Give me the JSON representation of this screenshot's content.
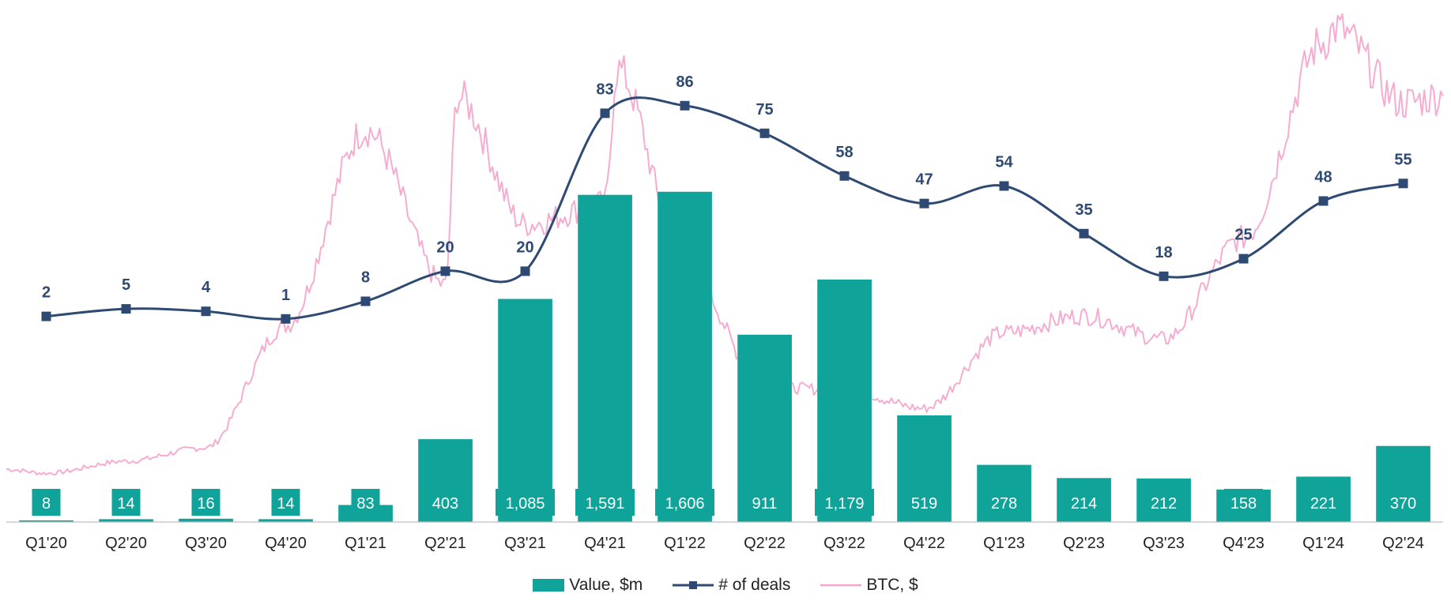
{
  "chart_data": {
    "type": "bar",
    "categories": [
      "Q1'20",
      "Q2'20",
      "Q3'20",
      "Q4'20",
      "Q1'21",
      "Q2'21",
      "Q3'21",
      "Q4'21",
      "Q1'22",
      "Q2'22",
      "Q3'22",
      "Q4'22",
      "Q1'23",
      "Q2'23",
      "Q3'23",
      "Q4'23",
      "Q1'24",
      "Q2'24"
    ],
    "series": [
      {
        "name": "Value, $m",
        "type": "bar",
        "axis": "left",
        "color": "#0fa39a",
        "values": [
          8,
          14,
          16,
          14,
          83,
          403,
          1085,
          1591,
          1606,
          911,
          1179,
          519,
          278,
          214,
          212,
          158,
          221,
          370
        ],
        "labels": [
          "8",
          "14",
          "16",
          "14",
          "83",
          "403",
          "1,085",
          "1,591",
          "1,606",
          "911",
          "1,179",
          "519",
          "278",
          "214",
          "212",
          "158",
          "221",
          "370"
        ]
      },
      {
        "name": "# of deals",
        "type": "line",
        "axis": "right",
        "color": "#2e4a73",
        "values": [
          2,
          5,
          4,
          1,
          8,
          20,
          20,
          83,
          86,
          75,
          58,
          47,
          54,
          35,
          18,
          25,
          48,
          55
        ]
      },
      {
        "name": "BTC, $",
        "type": "line",
        "axis": "secondary",
        "color": "#f5a3cc",
        "values": [
          7200,
          9000,
          11000,
          29000,
          58000,
          35000,
          44000,
          47000,
          38000,
          20000,
          19500,
          16800,
          28000,
          30500,
          27000,
          42000,
          71000,
          62000
        ],
        "peaks": [
          {
            "x": "Q2'21",
            "value": 63000
          },
          {
            "x": "Q4'21",
            "value": 67000
          },
          {
            "x": "Q1'24",
            "value": 73000
          }
        ]
      }
    ],
    "ylim": [
      0,
      2500
    ],
    "y2lim": [
      -80,
      125
    ],
    "y3lim": [
      0,
      76000
    ],
    "grid": false,
    "legend": "bottom"
  },
  "legend": {
    "value": "Value, $m",
    "deals": "# of deals",
    "btc": "BTC, $"
  }
}
